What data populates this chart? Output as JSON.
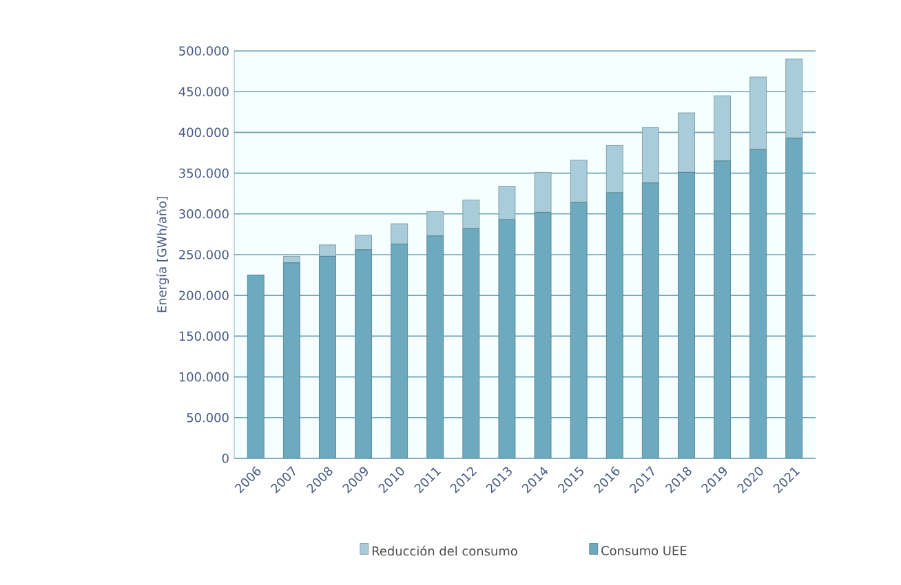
{
  "chart_data": {
    "type": "bar",
    "stacked": true,
    "ylabel": "Energía [GWh/año]",
    "categories": [
      "2006",
      "2007",
      "2008",
      "2009",
      "2010",
      "2011",
      "2012",
      "2013",
      "2014",
      "2015",
      "2016",
      "2017",
      "2018",
      "2019",
      "2020",
      "2021"
    ],
    "series": [
      {
        "name": "Consumo UEE",
        "color": "#6eaabf",
        "values": [
          225000,
          240000,
          248000,
          256000,
          263000,
          273000,
          282000,
          293000,
          302000,
          314000,
          326000,
          338000,
          351000,
          365000,
          379000,
          393000
        ]
      },
      {
        "name": "Reducción del consumo",
        "color": "#a8ccd9",
        "values": [
          0,
          8000,
          14000,
          18000,
          25000,
          30000,
          35000,
          41000,
          49000,
          52000,
          58000,
          68000,
          73000,
          80000,
          89000,
          97000
        ]
      }
    ],
    "ylim": [
      0,
      500000
    ],
    "yticks": [
      {
        "value": 0,
        "label": "0"
      },
      {
        "value": 50000,
        "label": "50.000"
      },
      {
        "value": 100000,
        "label": "100.000"
      },
      {
        "value": 150000,
        "label": "150.000"
      },
      {
        "value": 200000,
        "label": "200.000"
      },
      {
        "value": 250000,
        "label": "250.000"
      },
      {
        "value": 300000,
        "label": "300.000"
      },
      {
        "value": 350000,
        "label": "350.000"
      },
      {
        "value": 400000,
        "label": "400.000"
      },
      {
        "value": 450000,
        "label": "450.000"
      },
      {
        "value": 500000,
        "label": "500.000"
      }
    ],
    "grid": "y",
    "legend": "bottom"
  }
}
